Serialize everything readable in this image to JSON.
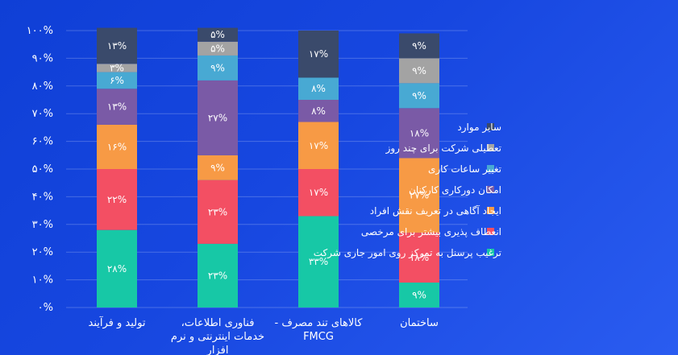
{
  "chart_data": {
    "type": "bar",
    "stacked": true,
    "categories": [
      [
        "تولید و فرآیند"
      ],
      [
        "فناوری اطلاعات،",
        "خدمات اینترنتی و نرم",
        "افزار"
      ],
      [
        "کالاهای تند مصرف -",
        "FMCG"
      ],
      [
        "ساختمان"
      ]
    ],
    "ylim": [
      0,
      100
    ],
    "yticks": [
      "۰%",
      "۱۰%",
      "۲۰%",
      "۳۰%",
      "۴۰%",
      "۵۰%",
      "۶۰%",
      "۷۰%",
      "۸۰%",
      "۹۰%",
      "۱۰۰%"
    ],
    "grid": true,
    "legend_position": "right",
    "series": [
      {
        "name": "ترغیب پرسنل به تمرکز روی امور جاری شرکت",
        "color": "#17c8a6",
        "values": [
          28,
          23,
          33,
          9
        ],
        "labels": [
          "۲۸%",
          "۲۳%",
          "۳۳%",
          "۹%"
        ]
      },
      {
        "name": "انعطاف پذیری بیشتر برای مرخصی",
        "color": "#f34f63",
        "values": [
          22,
          23,
          17,
          18
        ],
        "labels": [
          "۲۲%",
          "۲۳%",
          "۱۷%",
          "۱۸%"
        ]
      },
      {
        "name": "ایجاد آگاهی در تعریف نقش افراد",
        "color": "#f79a45",
        "values": [
          16,
          9,
          17,
          27
        ],
        "labels": [
          "۱۶%",
          "۹%",
          "۱۷%",
          "۲۷%"
        ]
      },
      {
        "name": "امکان دورکاری کارکنان",
        "color": "#7a5aa6",
        "values": [
          13,
          27,
          8,
          18
        ],
        "labels": [
          "۱۳%",
          "۲۷%",
          "۸%",
          "۱۸%"
        ]
      },
      {
        "name": "تغییر ساعات کاری",
        "color": "#48a9d3",
        "values": [
          6,
          9,
          8,
          9
        ],
        "labels": [
          "۶%",
          "۹%",
          "۸%",
          "۹%"
        ]
      },
      {
        "name": "تعطیلی شرکت برای چند روز",
        "color": "#a3a3a3",
        "values": [
          3,
          5,
          0,
          9
        ],
        "labels": [
          "۳%",
          "۵%",
          "",
          "۹%"
        ]
      },
      {
        "name": "سایر موارد",
        "color": "#3a4a6b",
        "values": [
          13,
          5,
          17,
          9
        ],
        "labels": [
          "۱۳%",
          "۵%",
          "۱۷%",
          "۹%"
        ]
      }
    ]
  }
}
